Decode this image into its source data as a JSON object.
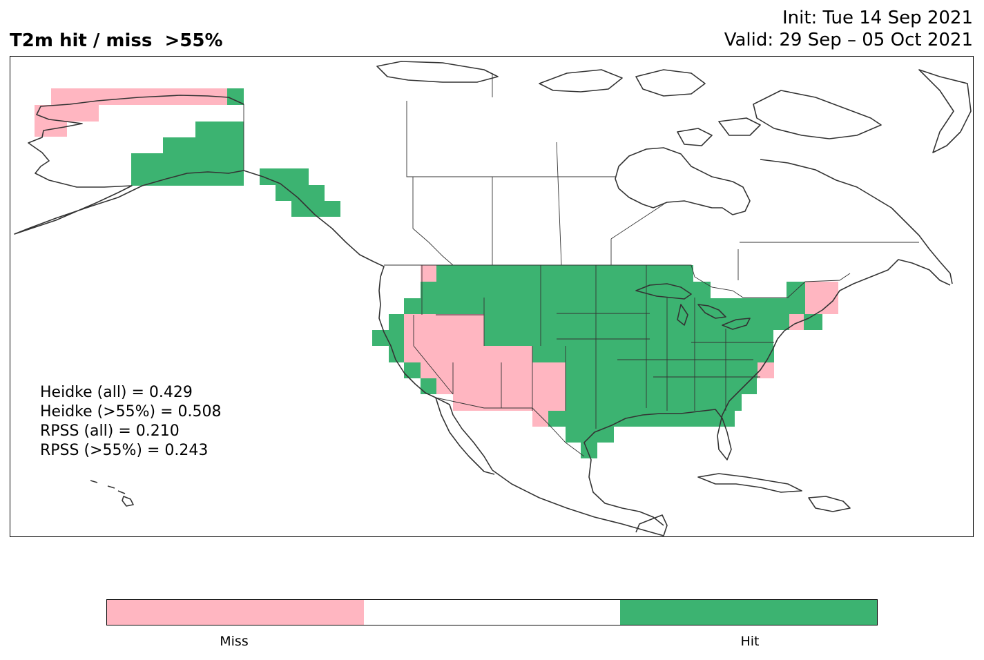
{
  "header": {
    "title": "T2m hit / miss  >55%",
    "init": "Init: Tue 14 Sep 2021",
    "valid": "Valid: 29 Sep – 05 Oct 2021"
  },
  "stats": {
    "heidke_all": "Heidke (all) = 0.429",
    "heidke_55": "Heidke (>55%) = 0.508",
    "rpss_all": "RPSS (all) = 0.210",
    "rpss_55": "RPSS (>55%) = 0.243"
  },
  "legend": {
    "miss_label": "Miss",
    "hit_label": "Hit",
    "segments": [
      {
        "category": "miss",
        "color": "#ffb6c1"
      },
      {
        "category": "none",
        "color": "#ffffff"
      },
      {
        "category": "hit",
        "color": "#3cb371"
      }
    ]
  },
  "colors": {
    "hit": "#3cb371",
    "miss": "#ffb6c1",
    "coastline": "#333333"
  }
}
